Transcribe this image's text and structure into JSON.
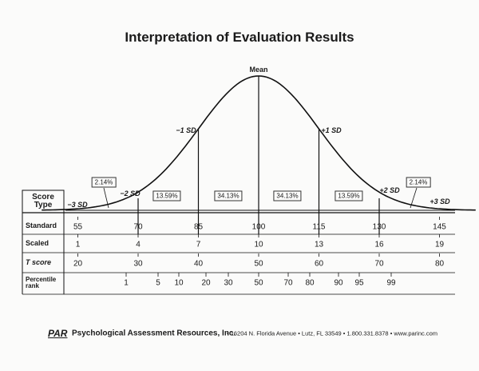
{
  "title": "Interpretation of Evaluation Results",
  "curve": {
    "mean_label": "Mean",
    "sd_labels": [
      "−3 SD",
      "−2 SD",
      "−1 SD",
      "+1 SD",
      "+2 SD",
      "+3 SD"
    ],
    "areas": [
      "2.14%",
      "13.59%",
      "34.13%",
      "34.13%",
      "13.59%",
      "2.14%"
    ]
  },
  "table": {
    "header": "Score Type",
    "rows": [
      {
        "label": "Standard",
        "values": [
          55,
          70,
          85,
          100,
          115,
          130,
          145
        ]
      },
      {
        "label": "Scaled",
        "values": [
          1,
          4,
          7,
          10,
          13,
          16,
          19
        ]
      },
      {
        "label": "T score",
        "values": [
          20,
          30,
          40,
          50,
          60,
          70,
          80
        ]
      },
      {
        "label": "Percentile rank",
        "values": [
          1,
          5,
          10,
          20,
          30,
          50,
          70,
          80,
          90,
          95,
          99
        ]
      }
    ]
  },
  "footer": {
    "brand": "PAR",
    "company": "Psychological Assessment Resources, Inc.",
    "address": "• 16204 N. Florida Avenue • Lutz, FL 33549 • 1.800.331.8378 • www.parinc.com"
  }
}
